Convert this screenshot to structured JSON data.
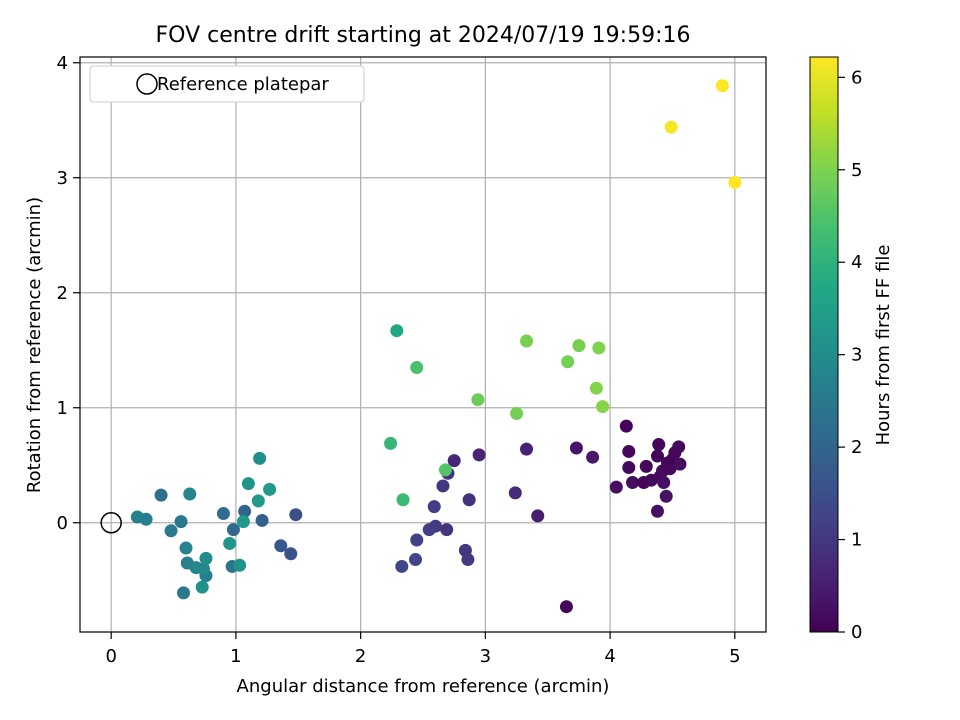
{
  "chart_data": {
    "type": "scatter",
    "title": "FOV centre drift starting at 2024/07/19 19:59:16",
    "xlabel": "Angular distance from reference (arcmin)",
    "ylabel": "Rotation from reference (arcmin)",
    "xlim": [
      -0.25,
      5.25
    ],
    "ylim": [
      -0.95,
      4.05
    ],
    "xticks": [
      0,
      1,
      2,
      3,
      4,
      5
    ],
    "yticks": [
      0,
      1,
      2,
      3,
      4
    ],
    "grid": true,
    "legend": {
      "placement": "top-left",
      "entries": [
        "Reference platepar"
      ]
    },
    "colorbar": {
      "label": "Hours from first FF file",
      "colormap": "viridis",
      "range": [
        0,
        6.22
      ],
      "ticks": [
        0,
        1,
        2,
        3,
        4,
        5,
        6
      ]
    },
    "reference_point": {
      "x": 0,
      "y": 0
    },
    "points": [
      {
        "x": 3.65,
        "y": -0.73,
        "c": 0.1
      },
      {
        "x": 4.13,
        "y": 0.84,
        "c": 0.05
      },
      {
        "x": 4.15,
        "y": 0.62,
        "c": 0.1
      },
      {
        "x": 4.15,
        "y": 0.48,
        "c": 0.15
      },
      {
        "x": 4.18,
        "y": 0.35,
        "c": 0.2
      },
      {
        "x": 4.05,
        "y": 0.31,
        "c": 0.25
      },
      {
        "x": 4.27,
        "y": 0.35,
        "c": 0.05
      },
      {
        "x": 4.29,
        "y": 0.49,
        "c": 0.1
      },
      {
        "x": 4.33,
        "y": 0.37,
        "c": 0.15
      },
      {
        "x": 4.38,
        "y": 0.58,
        "c": 0.05
      },
      {
        "x": 4.39,
        "y": 0.68,
        "c": 0.1
      },
      {
        "x": 4.4,
        "y": 0.4,
        "c": 0.15
      },
      {
        "x": 4.42,
        "y": 0.45,
        "c": 0.2
      },
      {
        "x": 4.43,
        "y": 0.35,
        "c": 0.25
      },
      {
        "x": 4.45,
        "y": 0.23,
        "c": 0.3
      },
      {
        "x": 4.46,
        "y": 0.52,
        "c": 0.1
      },
      {
        "x": 4.48,
        "y": 0.47,
        "c": 0.15
      },
      {
        "x": 4.5,
        "y": 0.55,
        "c": 0.05
      },
      {
        "x": 4.52,
        "y": 0.61,
        "c": 0.1
      },
      {
        "x": 4.55,
        "y": 0.66,
        "c": 0.15
      },
      {
        "x": 4.56,
        "y": 0.51,
        "c": 0.2
      },
      {
        "x": 4.38,
        "y": 0.1,
        "c": 0.25
      },
      {
        "x": 3.73,
        "y": 0.65,
        "c": 0.35
      },
      {
        "x": 3.86,
        "y": 0.57,
        "c": 0.45
      },
      {
        "x": 3.33,
        "y": 0.64,
        "c": 0.6
      },
      {
        "x": 3.24,
        "y": 0.26,
        "c": 0.75
      },
      {
        "x": 3.42,
        "y": 0.06,
        "c": 0.5
      },
      {
        "x": 2.95,
        "y": 0.59,
        "c": 0.65
      },
      {
        "x": 2.75,
        "y": 0.54,
        "c": 0.7
      },
      {
        "x": 2.7,
        "y": 0.43,
        "c": 0.85
      },
      {
        "x": 2.66,
        "y": 0.32,
        "c": 1.0
      },
      {
        "x": 2.87,
        "y": 0.2,
        "c": 0.9
      },
      {
        "x": 2.59,
        "y": 0.14,
        "c": 1.1
      },
      {
        "x": 2.6,
        "y": -0.03,
        "c": 1.05
      },
      {
        "x": 2.55,
        "y": -0.06,
        "c": 1.15
      },
      {
        "x": 2.69,
        "y": -0.06,
        "c": 0.95
      },
      {
        "x": 2.45,
        "y": -0.15,
        "c": 1.2
      },
      {
        "x": 2.84,
        "y": -0.24,
        "c": 1.0
      },
      {
        "x": 2.86,
        "y": -0.32,
        "c": 1.05
      },
      {
        "x": 2.44,
        "y": -0.32,
        "c": 1.25
      },
      {
        "x": 2.33,
        "y": -0.38,
        "c": 1.3
      },
      {
        "x": 1.48,
        "y": 0.07,
        "c": 1.5
      },
      {
        "x": 1.44,
        "y": -0.27,
        "c": 1.6
      },
      {
        "x": 1.36,
        "y": -0.2,
        "c": 1.7
      },
      {
        "x": 1.21,
        "y": 0.02,
        "c": 1.9
      },
      {
        "x": 1.07,
        "y": 0.1,
        "c": 2.0
      },
      {
        "x": 0.98,
        "y": -0.06,
        "c": 2.1
      },
      {
        "x": 0.9,
        "y": 0.08,
        "c": 2.2
      },
      {
        "x": 0.97,
        "y": -0.38,
        "c": 2.4
      },
      {
        "x": 0.4,
        "y": 0.24,
        "c": 2.3
      },
      {
        "x": 0.56,
        "y": 0.01,
        "c": 2.5
      },
      {
        "x": 0.48,
        "y": -0.07,
        "c": 2.55
      },
      {
        "x": 0.28,
        "y": 0.03,
        "c": 2.6
      },
      {
        "x": 0.21,
        "y": 0.05,
        "c": 2.7
      },
      {
        "x": 0.63,
        "y": 0.25,
        "c": 2.8
      },
      {
        "x": 0.6,
        "y": -0.22,
        "c": 2.75
      },
      {
        "x": 0.61,
        "y": -0.35,
        "c": 2.65
      },
      {
        "x": 0.68,
        "y": -0.39,
        "c": 2.8
      },
      {
        "x": 0.76,
        "y": -0.46,
        "c": 2.6
      },
      {
        "x": 0.74,
        "y": -0.4,
        "c": 2.9
      },
      {
        "x": 0.76,
        "y": -0.31,
        "c": 3.0
      },
      {
        "x": 0.73,
        "y": -0.56,
        "c": 3.1
      },
      {
        "x": 0.58,
        "y": -0.61,
        "c": 2.5
      },
      {
        "x": 0.95,
        "y": -0.18,
        "c": 3.2
      },
      {
        "x": 1.03,
        "y": -0.37,
        "c": 3.1
      },
      {
        "x": 1.06,
        "y": 0.01,
        "c": 3.3
      },
      {
        "x": 1.19,
        "y": 0.56,
        "c": 3.05
      },
      {
        "x": 1.1,
        "y": 0.34,
        "c": 3.2
      },
      {
        "x": 1.18,
        "y": 0.19,
        "c": 3.4
      },
      {
        "x": 1.27,
        "y": 0.29,
        "c": 3.35
      },
      {
        "x": 2.29,
        "y": 1.67,
        "c": 3.7
      },
      {
        "x": 2.24,
        "y": 0.69,
        "c": 4.1
      },
      {
        "x": 2.34,
        "y": 0.2,
        "c": 4.2
      },
      {
        "x": 2.45,
        "y": 1.35,
        "c": 4.4
      },
      {
        "x": 2.68,
        "y": 0.46,
        "c": 4.5
      },
      {
        "x": 2.94,
        "y": 1.07,
        "c": 4.8
      },
      {
        "x": 3.25,
        "y": 0.95,
        "c": 4.9
      },
      {
        "x": 3.33,
        "y": 1.58,
        "c": 4.95
      },
      {
        "x": 3.66,
        "y": 1.4,
        "c": 4.9
      },
      {
        "x": 3.75,
        "y": 1.54,
        "c": 4.95
      },
      {
        "x": 3.91,
        "y": 1.52,
        "c": 5.0
      },
      {
        "x": 3.89,
        "y": 1.17,
        "c": 5.05
      },
      {
        "x": 3.94,
        "y": 1.01,
        "c": 5.1
      },
      {
        "x": 4.49,
        "y": 3.44,
        "c": 6.15
      },
      {
        "x": 4.9,
        "y": 3.8,
        "c": 6.2
      },
      {
        "x": 5.0,
        "y": 2.96,
        "c": 6.22
      }
    ]
  }
}
